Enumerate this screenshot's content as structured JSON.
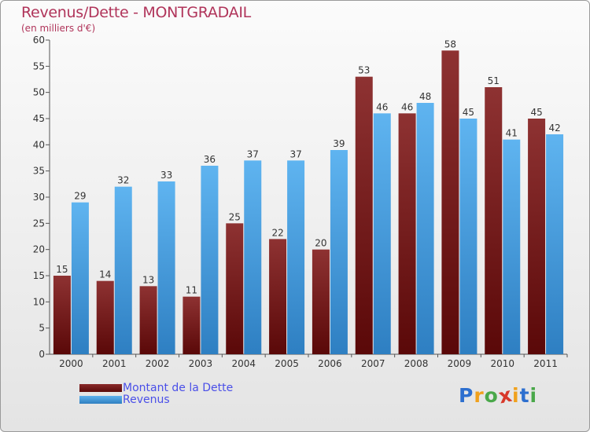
{
  "header": {
    "title": "Revenus/Dette - MONTGRADAIL",
    "subtitle": "(en milliers d'€)"
  },
  "chart_data": {
    "type": "bar",
    "title": "Revenus/Dette - MONTGRADAIL",
    "subtitle": "(en milliers d'€)",
    "xlabel": "",
    "ylabel": "",
    "categories": [
      "2000",
      "2001",
      "2002",
      "2003",
      "2004",
      "2005",
      "2006",
      "2007",
      "2008",
      "2009",
      "2010",
      "2011"
    ],
    "series": [
      {
        "name": "Montant de la Dette",
        "values": [
          15,
          14,
          13,
          11,
          25,
          22,
          20,
          53,
          46,
          58,
          51,
          45
        ],
        "color": "#7a1a1a"
      },
      {
        "name": "Revenus",
        "values": [
          29,
          32,
          33,
          36,
          37,
          37,
          39,
          46,
          48,
          45,
          41,
          42
        ],
        "color": "#4ea3e0"
      }
    ],
    "ylim": [
      0,
      60
    ],
    "yticks": [
      0,
      5,
      10,
      15,
      20,
      25,
      30,
      35,
      40,
      45,
      50,
      55,
      60
    ],
    "grid": false,
    "legend": "bottom-left",
    "data_labels": true
  },
  "legend": {
    "items": [
      {
        "label": "Montant de la Dette",
        "color": "#6a0f12"
      },
      {
        "label": "Revenus",
        "color": "#4ea3e0"
      }
    ]
  },
  "brand": {
    "letters": [
      "P",
      "r",
      "o",
      "x",
      "i",
      "t",
      "i"
    ],
    "colors": [
      "#2d6fcf",
      "#f0a11d",
      "#4aa84a",
      "#d8382a",
      "#f0a11d",
      "#2d6fcf",
      "#4aa84a"
    ]
  }
}
